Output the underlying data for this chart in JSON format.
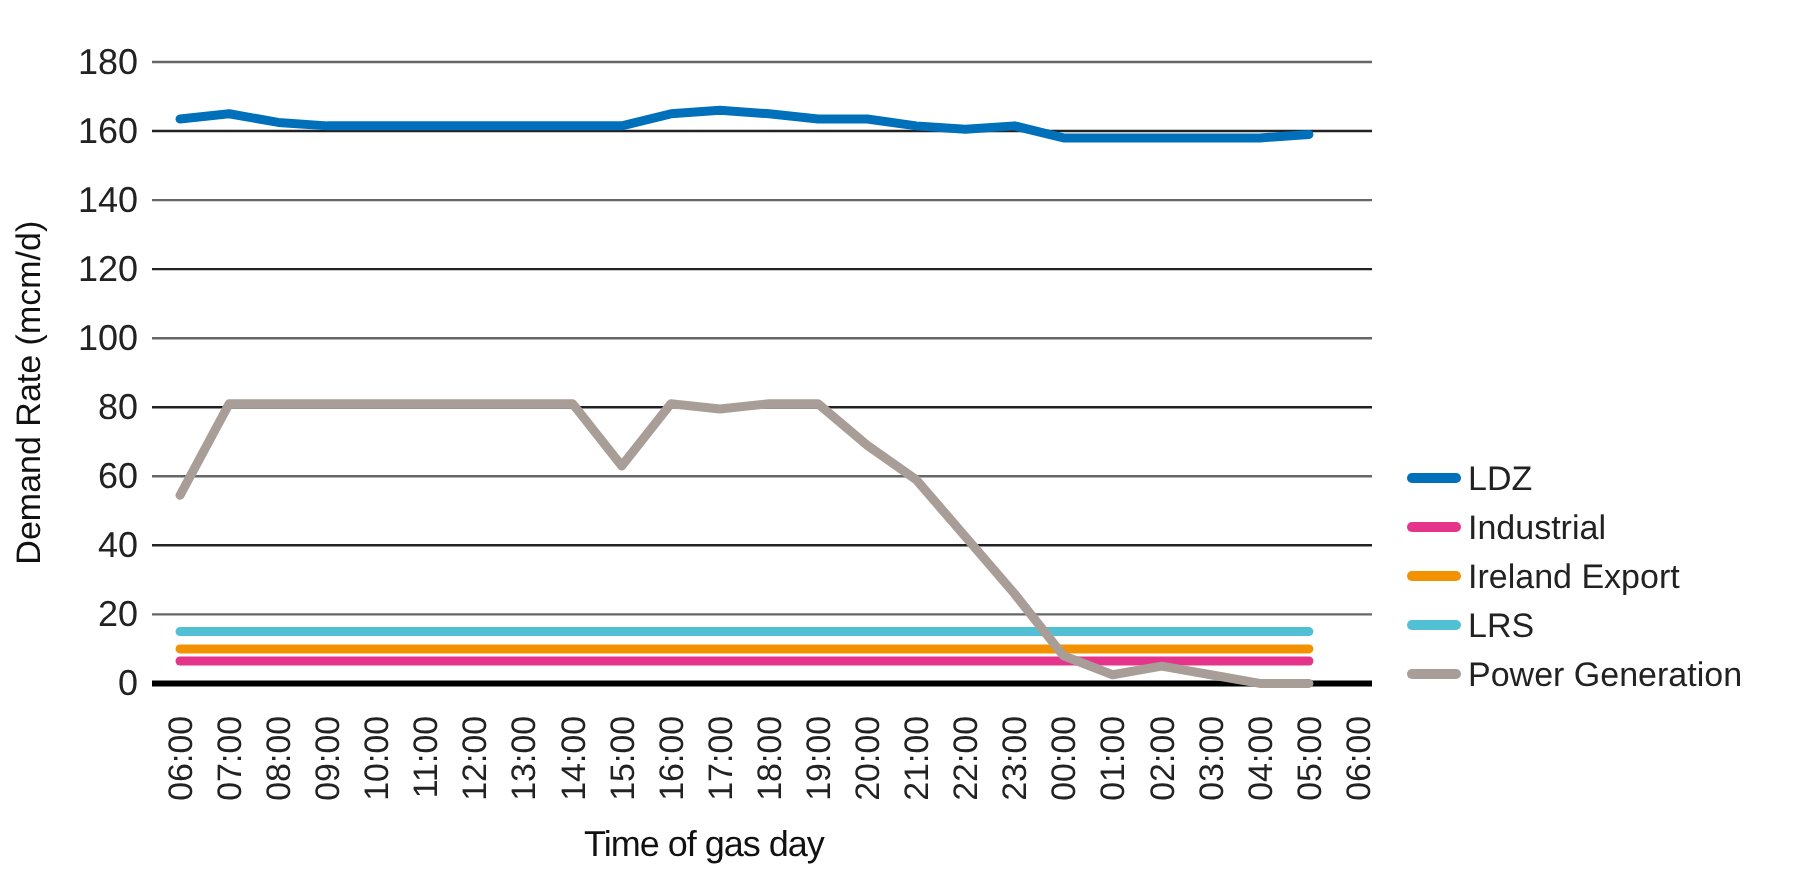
{
  "chart_data": {
    "type": "line",
    "xlabel": "Time of gas day",
    "ylabel": "Demand Rate (mcm/d)",
    "categories": [
      "06:00",
      "07:00",
      "08:00",
      "09:00",
      "10:00",
      "11:00",
      "12:00",
      "13:00",
      "14:00",
      "15:00",
      "16:00",
      "17:00",
      "18:00",
      "19:00",
      "20:00",
      "21:00",
      "22:00",
      "23:00",
      "00:00",
      "01:00",
      "02:00",
      "03:00",
      "04:00",
      "05:00",
      "06:00"
    ],
    "series": [
      {
        "name": "LDZ",
        "color": "#0070bb",
        "values": [
          163.5,
          165,
          162.5,
          161.5,
          161.5,
          161.5,
          161.5,
          161.5,
          161.5,
          161.5,
          165,
          166,
          165,
          163.5,
          163.5,
          161.5,
          160.5,
          161.5,
          158,
          158,
          158,
          158,
          158,
          159,
          null
        ]
      },
      {
        "name": "Industrial",
        "color": "#e5358a",
        "values": [
          6.5,
          6.5,
          6.5,
          6.5,
          6.5,
          6.5,
          6.5,
          6.5,
          6.5,
          6.5,
          6.5,
          6.5,
          6.5,
          6.5,
          6.5,
          6.5,
          6.5,
          6.5,
          6.5,
          6.5,
          6.5,
          6.5,
          6.5,
          6.5,
          null
        ]
      },
      {
        "name": "Ireland Export",
        "color": "#f39200",
        "values": [
          10,
          10,
          10,
          10,
          10,
          10,
          10,
          10,
          10,
          10,
          10,
          10,
          10,
          10,
          10,
          10,
          10,
          10,
          10,
          10,
          10,
          10,
          10,
          10,
          null
        ]
      },
      {
        "name": "LRS",
        "color": "#52c0d4",
        "values": [
          15,
          15,
          15,
          15,
          15,
          15,
          15,
          15,
          15,
          15,
          15,
          15,
          15,
          15,
          15,
          15,
          15,
          15,
          15,
          15,
          15,
          15,
          15,
          15,
          null
        ]
      },
      {
        "name": "Power Generation",
        "color": "#a89e97",
        "values": [
          54.5,
          81,
          81,
          81,
          81,
          81,
          81,
          81,
          81,
          63,
          81,
          79.5,
          81,
          81,
          69,
          59,
          42.5,
          26,
          8,
          2.5,
          5,
          2.5,
          0,
          0,
          null
        ]
      }
    ],
    "ylim": [
      0,
      180
    ],
    "yticks": [
      0,
      20,
      40,
      60,
      80,
      100,
      120,
      140,
      160,
      180
    ],
    "grid": "y",
    "legend": "right",
    "line_style": "solid",
    "marker": "none"
  }
}
